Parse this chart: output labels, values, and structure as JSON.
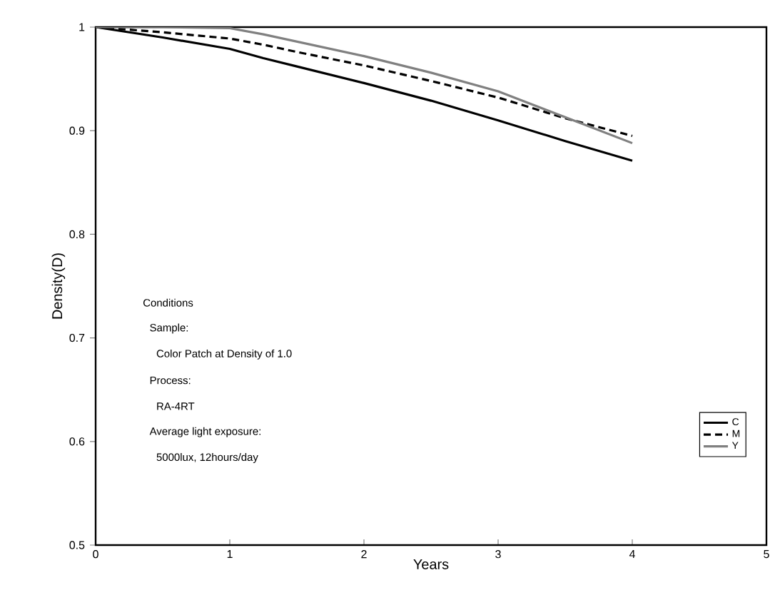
{
  "chart_data": {
    "type": "line",
    "xlabel": "Years",
    "ylabel": "Density(D)",
    "x": [
      0,
      0.5,
      1,
      1.25,
      1.5,
      2,
      2.5,
      3,
      3.5,
      4
    ],
    "series": [
      {
        "name": "C",
        "color": "#000000",
        "line_style": "solid",
        "values": [
          1,
          0.99,
          0.979,
          0.97,
          0.962,
          0.946,
          0.929,
          0.91,
          0.89,
          0.871
        ]
      },
      {
        "name": "M",
        "color": "#000000",
        "line_style": "dashed",
        "values": [
          1,
          0.995,
          0.989,
          0.983,
          0.976,
          0.963,
          0.948,
          0.932,
          0.912,
          0.895
        ]
      },
      {
        "name": "Y",
        "color": "#808080",
        "line_style": "solid",
        "values": [
          1,
          1.0,
          0.999,
          0.993,
          0.986,
          0.972,
          0.956,
          0.938,
          0.913,
          0.888
        ]
      }
    ],
    "xlim": [
      0,
      5
    ],
    "ylim": [
      0.5,
      1
    ],
    "xticks": [
      0,
      1,
      2,
      3,
      4,
      5
    ],
    "yticks": [
      0.5,
      0.6,
      0.7,
      0.8,
      0.9,
      1
    ],
    "grid": false,
    "legend": "bottom right",
    "marker": "none",
    "annotations": [
      "Conditions",
      "Sample:",
      "Color Patch at Density of 1.0",
      "Process:",
      "RA-4RT",
      "Average light exposure:",
      "5000lux, 12hours/day"
    ]
  }
}
